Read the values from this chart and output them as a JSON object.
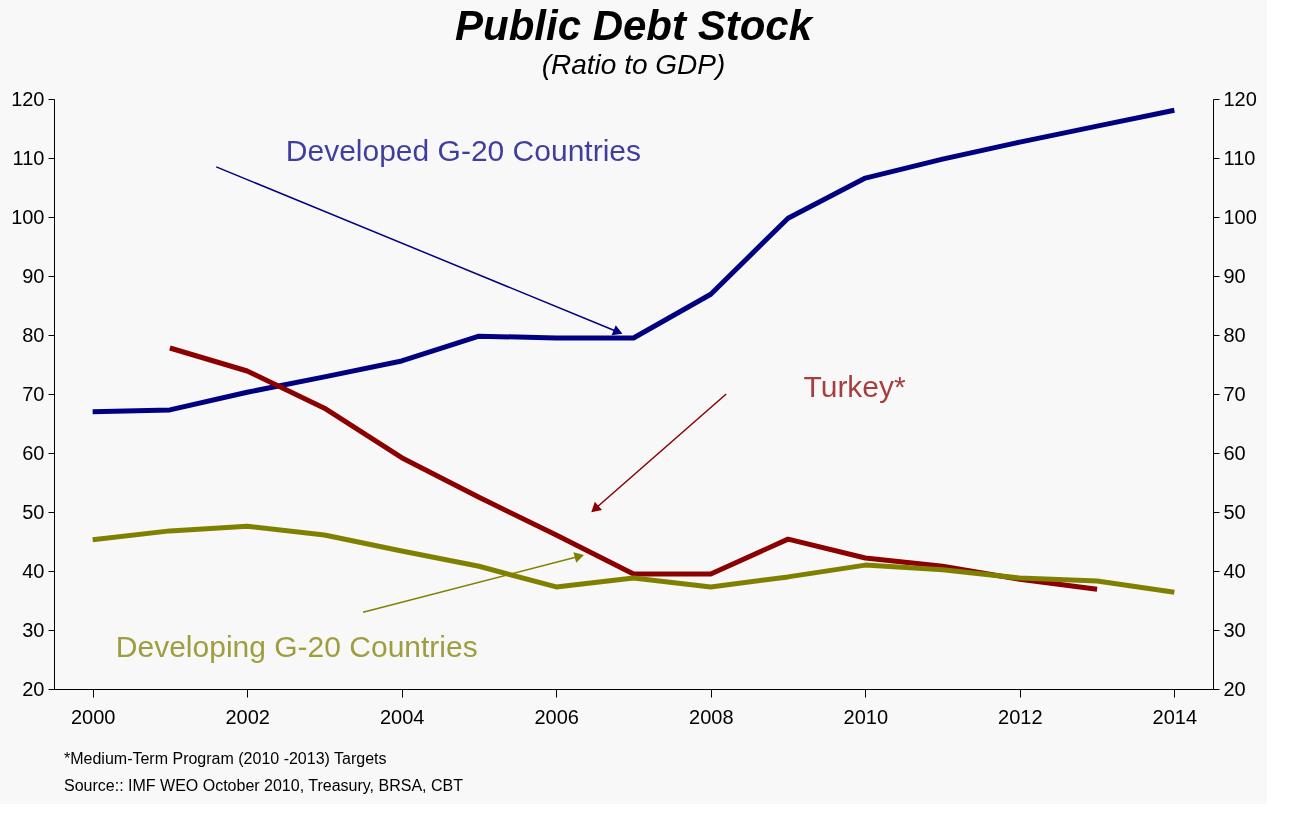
{
  "chart_data": {
    "type": "line",
    "title": "Public Debt Stock",
    "subtitle": "(Ratio to GDP)",
    "x": [
      2000,
      2001,
      2002,
      2003,
      2004,
      2005,
      2006,
      2007,
      2008,
      2009,
      2010,
      2011,
      2012,
      2013,
      2014
    ],
    "series": [
      {
        "name": "Developed G-20 Countries",
        "color": "#000080",
        "values": [
          67,
          67.3,
          70.3,
          72.9,
          75.6,
          79.8,
          79.5,
          79.5,
          86.9,
          99.8,
          106.6,
          109.8,
          112.7,
          115.4,
          118.1
        ]
      },
      {
        "name": "Turkey*",
        "color": "#8b0000",
        "x": [
          2001,
          2002,
          2003,
          2004,
          2005,
          2006,
          2007,
          2008,
          2009,
          2010,
          2011,
          2012,
          2013
        ],
        "values": [
          77.8,
          73.9,
          67.6,
          59.2,
          52.5,
          46.1,
          39.5,
          39.5,
          45.4,
          42.2,
          40.8,
          38.6,
          36.9
        ]
      },
      {
        "name": "Developing G-20 Countries",
        "color": "#808000",
        "values": [
          45.3,
          46.8,
          47.6,
          46.1,
          43.4,
          40.8,
          37.3,
          38.8,
          37.3,
          39.0,
          41.0,
          40.2,
          38.8,
          38.3,
          36.4
        ]
      }
    ],
    "xlim": [
      1999.5,
      2014.5
    ],
    "xticks": [
      2000,
      2002,
      2004,
      2006,
      2008,
      2010,
      2012,
      2014
    ],
    "ylim": [
      20,
      120
    ],
    "yticks": [
      20,
      30,
      40,
      50,
      60,
      70,
      80,
      90,
      100,
      110,
      120
    ],
    "y2lim": [
      20,
      120
    ],
    "y2ticks": [
      20,
      30,
      40,
      50,
      60,
      70,
      80,
      90,
      100,
      110,
      120
    ],
    "grid": false,
    "legend": false,
    "marker": "none",
    "line_style": "solid",
    "annotations": [
      "*Medium-Term Program (2010 -2013) Targets",
      "Source:: IMF WEO October 2010, Treasury, BRSA, CBT"
    ]
  }
}
